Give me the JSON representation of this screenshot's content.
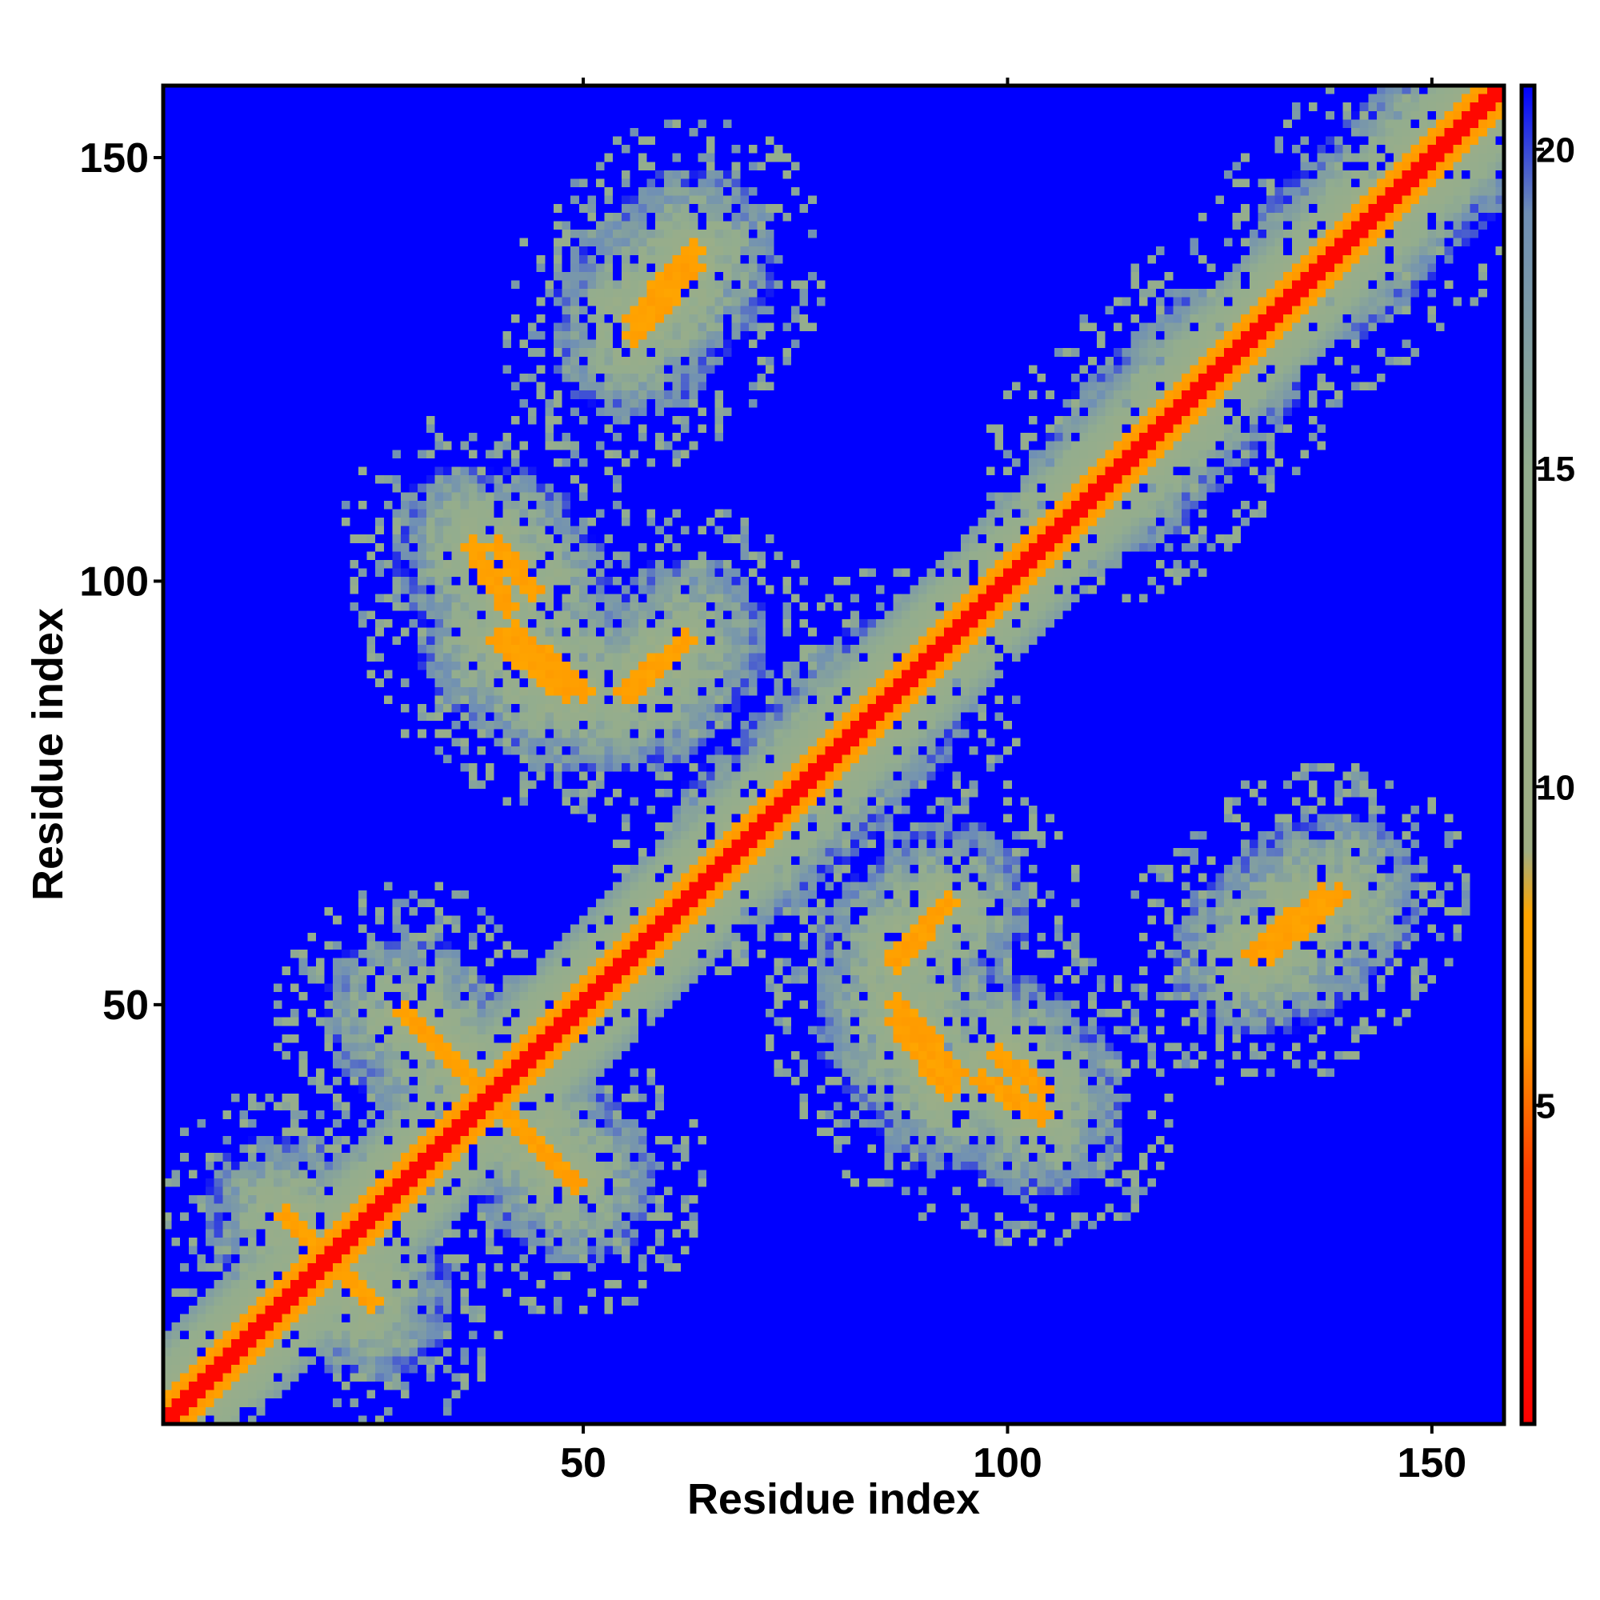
{
  "chart_data": {
    "type": "heatmap",
    "title": "",
    "xlabel": "Residue index",
    "ylabel": "Residue index",
    "xlim": [
      1,
      158
    ],
    "ylim": [
      1,
      158
    ],
    "x_ticks": [
      50,
      100,
      150
    ],
    "y_ticks": [
      50,
      100,
      150
    ],
    "x_tick_labels": [
      "50",
      "100",
      "150"
    ],
    "y_tick_labels": [
      "50",
      "100",
      "150"
    ],
    "colorbar": {
      "range": [
        0,
        21
      ],
      "ticks": [
        5,
        10,
        15,
        20
      ],
      "tick_labels": [
        "5",
        "10",
        "15",
        "20"
      ],
      "stops": [
        {
          "value": 0,
          "color": "#ff0000"
        },
        {
          "value": 4,
          "color": "#ff4000"
        },
        {
          "value": 6,
          "color": "#ff9a00"
        },
        {
          "value": 8,
          "color": "#ffa500"
        },
        {
          "value": 9,
          "color": "#9fae84"
        },
        {
          "value": 15,
          "color": "#93ad8e"
        },
        {
          "value": 19,
          "color": "#6f8fb5"
        },
        {
          "value": 21,
          "color": "#0000ff"
        }
      ]
    },
    "description_of_values": "Pairwise residue distance map; diagonal near 0 (red), contacts 4-8 (orange), mid distances 9-19 (green-grey), far > 20 (blue).",
    "contact_features": [
      {
        "kind": "diagonal",
        "from": [
          1,
          1
        ],
        "to": [
          158,
          158
        ],
        "value": 1
      },
      {
        "kind": "antiparallel",
        "center": [
          20,
          20
        ],
        "length": 10,
        "value": 6
      },
      {
        "kind": "antiparallel",
        "center": [
          39,
          39
        ],
        "length": 20,
        "value": 6
      },
      {
        "kind": "parallel",
        "from": [
          56,
          129
        ],
        "to": [
          63,
          137
        ],
        "value": 6
      },
      {
        "kind": "parallel",
        "from": [
          40,
          104
        ],
        "to": [
          44,
          99
        ],
        "value": 6
      },
      {
        "kind": "parallel",
        "from": [
          42,
          94
        ],
        "to": [
          50,
          87
        ],
        "value": 6
      },
      {
        "kind": "parallel",
        "from": [
          56,
          87
        ],
        "to": [
          62,
          93
        ],
        "value": 6
      },
      {
        "kind": "parallel",
        "from": [
          87,
          55
        ],
        "to": [
          92,
          61
        ],
        "value": 6
      },
      {
        "kind": "parallel",
        "from": [
          87,
          48
        ],
        "to": [
          93,
          40
        ],
        "value": 6
      },
      {
        "kind": "parallel",
        "from": [
          97,
          41
        ],
        "to": [
          104,
          37
        ],
        "value": 6
      },
      {
        "kind": "parallel",
        "from": [
          131,
          56
        ],
        "to": [
          139,
          63
        ],
        "value": 6
      },
      {
        "kind": "parallel",
        "from": [
          113,
          113
        ],
        "to": [
          125,
          125
        ],
        "value": 6
      },
      {
        "kind": "parallel",
        "from": [
          138,
          138
        ],
        "to": [
          152,
          152
        ],
        "value": 6
      },
      {
        "kind": "parallel",
        "from": [
          69,
          69
        ],
        "to": [
          86,
          86
        ],
        "value": 6
      }
    ],
    "blue_regions": [
      {
        "x": [
          1,
          158
        ],
        "y": [
          1,
          30
        ],
        "note": "lower-right far region"
      },
      {
        "x": [
          1,
          25
        ],
        "y": [
          30,
          158
        ],
        "note": "left far region"
      }
    ]
  }
}
